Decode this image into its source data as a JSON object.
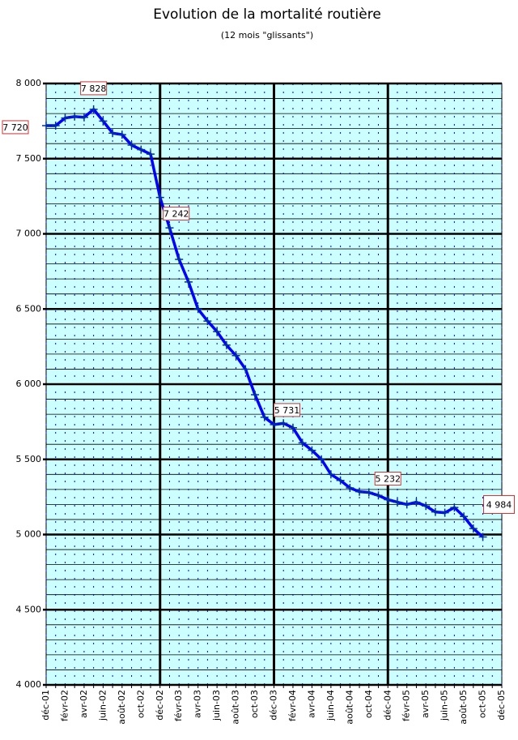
{
  "chart_data": {
    "type": "line",
    "title": "Evolution de la mortalité routière",
    "subtitle": "(12 mois \"glissants\")",
    "categories": [
      "déc-01",
      null,
      "févr-02",
      null,
      "avr-02",
      null,
      "juin-02",
      null,
      "août-02",
      null,
      "oct-02",
      null,
      "déc-02",
      null,
      "févr-03",
      null,
      "avr-03",
      null,
      "juin-03",
      null,
      "août-03",
      null,
      "oct-03",
      null,
      "déc-03",
      null,
      "févr-04",
      null,
      "avr-04",
      null,
      "juin-04",
      null,
      "août-04",
      null,
      "oct-04",
      null,
      "déc-04",
      null,
      "févr-05",
      null,
      "avr-05",
      null,
      "juin-05",
      null,
      "août-05",
      null,
      "oct-05",
      null,
      "déc-05"
    ],
    "series": [
      {
        "name": "Mortalité routière",
        "color": "#0000ff",
        "values": [
          7720,
          7720,
          7770,
          7780,
          7775,
          7828,
          7750,
          7670,
          7660,
          7590,
          7560,
          7530,
          7242,
          7040,
          6830,
          6680,
          6500,
          6420,
          6350,
          6260,
          6190,
          6100,
          5930,
          5780,
          5731,
          5740,
          5710,
          5610,
          5560,
          5500,
          5400,
          5360,
          5310,
          5285,
          5280,
          5260,
          5232,
          5215,
          5200,
          5215,
          5190,
          5150,
          5145,
          5180,
          5120,
          5040,
          4984,
          null,
          null
        ],
        "value_labels": [
          "7 720",
          null,
          null,
          null,
          null,
          "7 828",
          null,
          null,
          null,
          null,
          null,
          null,
          "7 242",
          null,
          null,
          null,
          null,
          null,
          null,
          null,
          null,
          null,
          null,
          null,
          "5 731",
          null,
          null,
          null,
          null,
          null,
          null,
          null,
          null,
          null,
          null,
          null,
          "5 232",
          null,
          null,
          null,
          null,
          null,
          null,
          null,
          null,
          null,
          "4 984",
          null,
          null
        ]
      }
    ],
    "ylim": [
      4000,
      8000
    ],
    "yticks": [
      {
        "value": 4000,
        "label": "4 000"
      },
      {
        "value": 4500,
        "label": "4 500"
      },
      {
        "value": 5000,
        "label": "5 000"
      },
      {
        "value": 5500,
        "label": "5 500"
      },
      {
        "value": 6000,
        "label": "6 000"
      },
      {
        "value": 6500,
        "label": "6 500"
      },
      {
        "value": 7000,
        "label": "7 000"
      },
      {
        "value": 7500,
        "label": "7 500"
      },
      {
        "value": 8000,
        "label": "8 000"
      }
    ],
    "grid": true,
    "background": "#ccffff"
  }
}
